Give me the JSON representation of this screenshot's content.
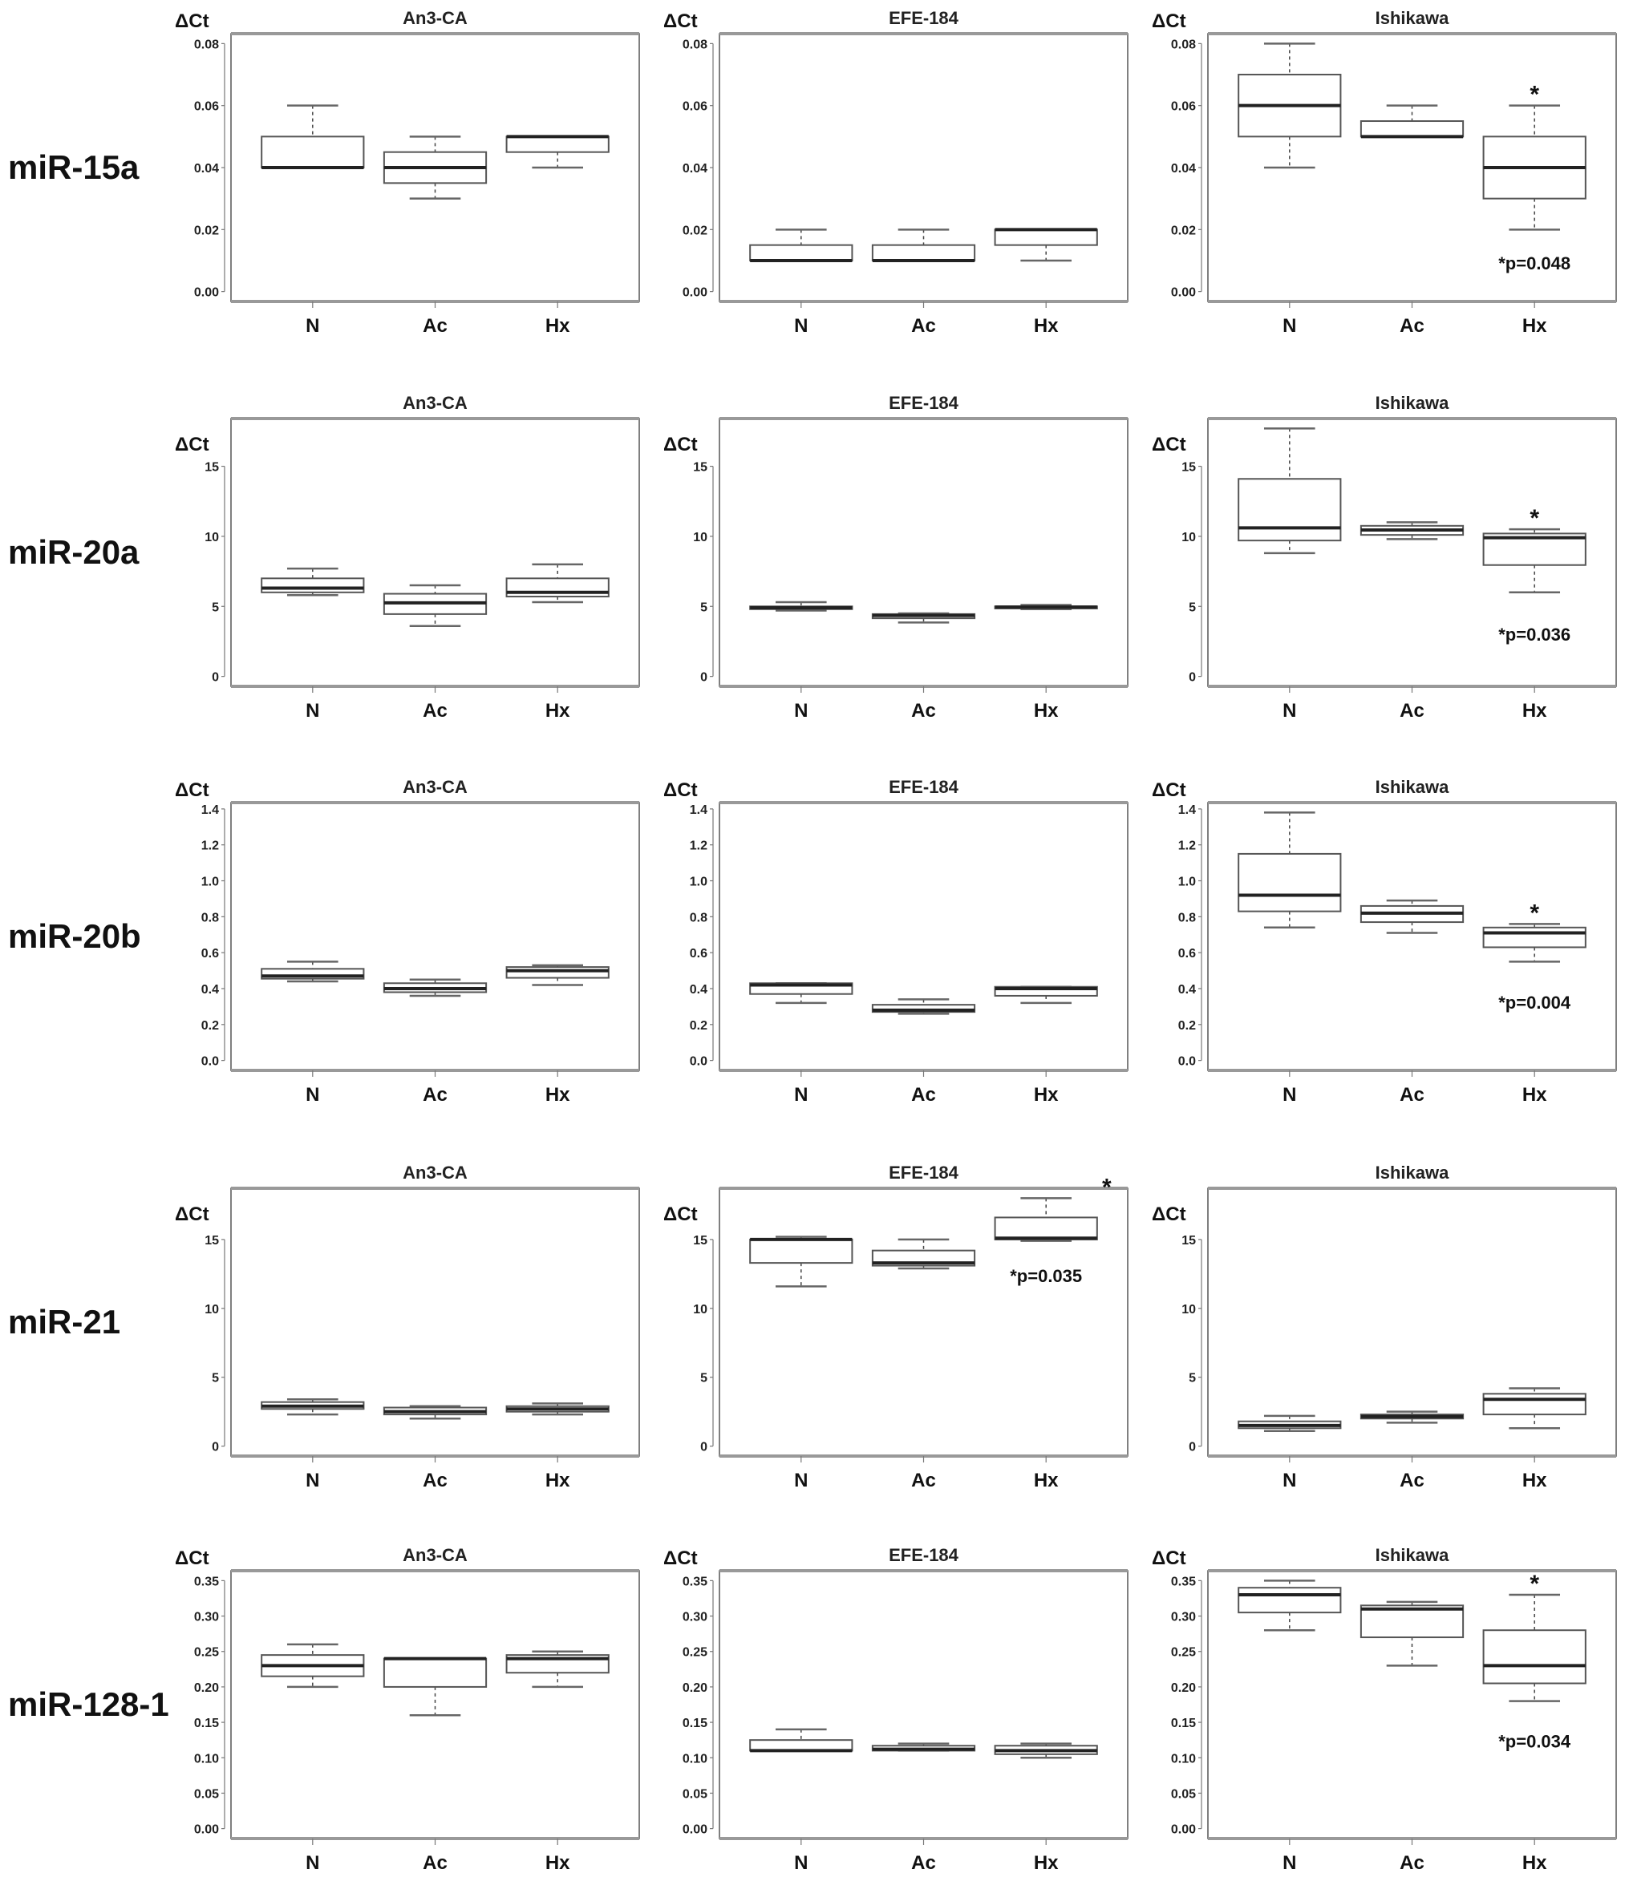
{
  "chart_data": {
    "type": "boxplot",
    "ylabel": "ΔCt",
    "categories": [
      "N",
      "Ac",
      "Hx"
    ],
    "cell_lines": [
      "An3-CA",
      "EFE-184",
      "Ishikawa"
    ],
    "box_format": "[lower whisker, Q1, median, Q3, upper whisker]",
    "rows": [
      {
        "label": "miR-15a",
        "ylim": [
          0,
          0.08
        ],
        "yticks": [
          "0.00",
          "0.02",
          "0.04",
          "0.06",
          "0.08"
        ],
        "panels": [
          {
            "title": "An3-CA",
            "boxes": [
              [
                0.04,
                0.04,
                0.04,
                0.05,
                0.06
              ],
              [
                0.03,
                0.035,
                0.04,
                0.045,
                0.05
              ],
              [
                0.04,
                0.045,
                0.05,
                0.05,
                0.05
              ]
            ]
          },
          {
            "title": "EFE-184",
            "boxes": [
              [
                0.01,
                0.01,
                0.01,
                0.015,
                0.02
              ],
              [
                0.01,
                0.01,
                0.01,
                0.015,
                0.02
              ],
              [
                0.01,
                0.015,
                0.02,
                0.02,
                0.02
              ]
            ]
          },
          {
            "title": "Ishikawa",
            "boxes": [
              [
                0.04,
                0.05,
                0.06,
                0.07,
                0.08
              ],
              [
                0.05,
                0.05,
                0.05,
                0.055,
                0.06
              ],
              [
                0.02,
                0.03,
                0.04,
                0.05,
                0.06
              ]
            ],
            "significant": "Hx",
            "star": "*",
            "p_label": "*p=0.048"
          }
        ]
      },
      {
        "label": "miR-20a",
        "ylim": [
          0,
          17.7
        ],
        "yticks": [
          "0",
          "5",
          "10",
          "15"
        ],
        "panels": [
          {
            "title": "An3-CA",
            "boxes": [
              [
                5.8,
                6.0,
                6.3,
                7.0,
                7.7
              ],
              [
                3.6,
                4.45,
                5.25,
                5.9,
                6.5
              ],
              [
                5.3,
                5.7,
                6.0,
                7.0,
                8.0
              ]
            ]
          },
          {
            "title": "EFE-184",
            "boxes": [
              [
                4.7,
                4.8,
                4.9,
                5.0,
                5.3
              ],
              [
                3.85,
                4.15,
                4.35,
                4.45,
                4.5
              ],
              [
                4.8,
                4.85,
                4.95,
                5.0,
                5.1
              ]
            ]
          },
          {
            "title": "Ishikawa",
            "boxes": [
              [
                8.8,
                9.7,
                10.6,
                14.1,
                17.7
              ],
              [
                9.8,
                10.1,
                10.45,
                10.75,
                11.0
              ],
              [
                6.0,
                7.95,
                9.9,
                10.2,
                10.5
              ]
            ],
            "significant": "Hx",
            "star": "*",
            "p_label": "*p=0.036"
          }
        ]
      },
      {
        "label": "miR-20b",
        "ylim": [
          0,
          1.38
        ],
        "yticks": [
          "0.0",
          "0.2",
          "0.4",
          "0.6",
          "0.8",
          "1.0",
          "1.2",
          "1.4"
        ],
        "panels": [
          {
            "title": "An3-CA",
            "boxes": [
              [
                0.44,
                0.455,
                0.47,
                0.51,
                0.55
              ],
              [
                0.36,
                0.38,
                0.4,
                0.43,
                0.45
              ],
              [
                0.42,
                0.46,
                0.5,
                0.52,
                0.53
              ]
            ]
          },
          {
            "title": "EFE-184",
            "boxes": [
              [
                0.32,
                0.37,
                0.42,
                0.43,
                0.43
              ],
              [
                0.26,
                0.27,
                0.28,
                0.31,
                0.34
              ],
              [
                0.32,
                0.36,
                0.4,
                0.41,
                0.41
              ]
            ]
          },
          {
            "title": "Ishikawa",
            "boxes": [
              [
                0.74,
                0.83,
                0.92,
                1.15,
                1.38
              ],
              [
                0.71,
                0.77,
                0.82,
                0.86,
                0.89
              ],
              [
                0.55,
                0.63,
                0.71,
                0.74,
                0.76
              ]
            ],
            "significant": "Hx",
            "star": "*",
            "p_label": "*p=0.004"
          }
        ]
      },
      {
        "label": "miR-21",
        "ylim": [
          0,
          18.0
        ],
        "yticks": [
          "0",
          "5",
          "10",
          "15"
        ],
        "panels": [
          {
            "title": "An3-CA",
            "boxes": [
              [
                2.3,
                2.7,
                2.9,
                3.2,
                3.4
              ],
              [
                2.0,
                2.3,
                2.5,
                2.8,
                2.9
              ],
              [
                2.3,
                2.5,
                2.7,
                2.9,
                3.1
              ]
            ]
          },
          {
            "title": "EFE-184",
            "boxes": [
              [
                11.6,
                13.3,
                15.0,
                15.0,
                15.2
              ],
              [
                12.9,
                13.1,
                13.3,
                14.2,
                15.0
              ],
              [
                14.9,
                15.0,
                15.1,
                16.6,
                18.0
              ]
            ],
            "significant": "Hx",
            "star": "*",
            "p_label": "*p=0.035"
          },
          {
            "title": "Ishikawa",
            "boxes": [
              [
                1.1,
                1.3,
                1.5,
                1.8,
                2.2
              ],
              [
                1.7,
                2.0,
                2.15,
                2.3,
                2.5
              ],
              [
                1.3,
                2.3,
                3.4,
                3.8,
                4.2
              ]
            ]
          }
        ]
      },
      {
        "label": "miR-128-1",
        "ylim": [
          0,
          0.35
        ],
        "yticks": [
          "0.00",
          "0.05",
          "0.10",
          "0.15",
          "0.20",
          "0.25",
          "0.30",
          "0.35"
        ],
        "panels": [
          {
            "title": "An3-CA",
            "boxes": [
              [
                0.2,
                0.215,
                0.23,
                0.245,
                0.26
              ],
              [
                0.16,
                0.2,
                0.24,
                0.24,
                0.24
              ],
              [
                0.2,
                0.22,
                0.24,
                0.245,
                0.25
              ]
            ]
          },
          {
            "title": "EFE-184",
            "boxes": [
              [
                0.11,
                0.11,
                0.11,
                0.125,
                0.14
              ],
              [
                0.11,
                0.11,
                0.112,
                0.117,
                0.12
              ],
              [
                0.1,
                0.105,
                0.11,
                0.117,
                0.12
              ]
            ]
          },
          {
            "title": "Ishikawa",
            "boxes": [
              [
                0.28,
                0.305,
                0.33,
                0.34,
                0.35
              ],
              [
                0.23,
                0.27,
                0.31,
                0.315,
                0.32
              ],
              [
                0.18,
                0.205,
                0.23,
                0.28,
                0.33
              ]
            ],
            "significant": "Hx",
            "star": "*",
            "p_label": "*p=0.034"
          }
        ]
      }
    ]
  }
}
